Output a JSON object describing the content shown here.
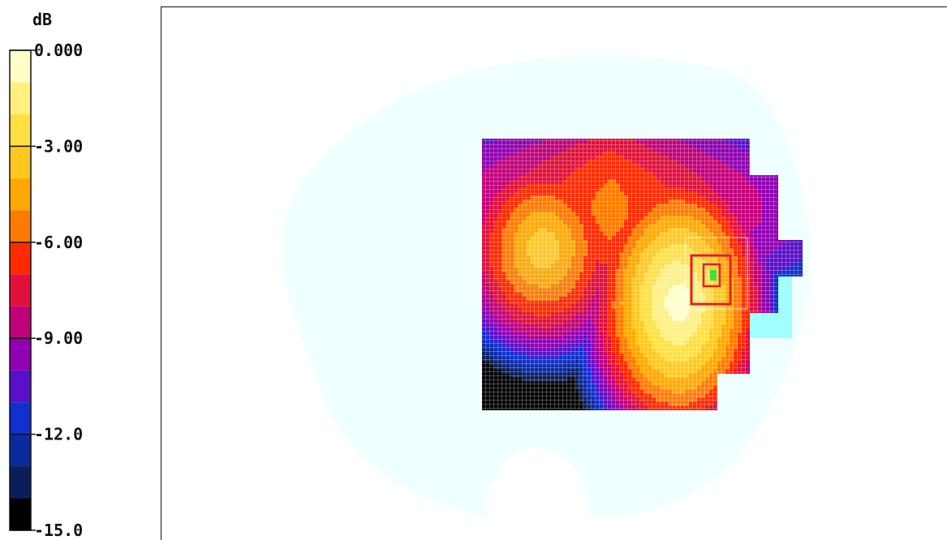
{
  "chart_data": {
    "type": "heatmap",
    "colorbar": {
      "unit": "dB",
      "min": -15.0,
      "max": 0.0,
      "ticks": [
        {
          "value": 0.0,
          "label": "0.000"
        },
        {
          "value": -3.0,
          "label": "-3.00"
        },
        {
          "value": -6.0,
          "label": "-6.00"
        },
        {
          "value": -9.0,
          "label": "-9.00"
        },
        {
          "value": -12.0,
          "label": "-12.0"
        },
        {
          "value": -15.0,
          "label": "-15.0"
        }
      ],
      "bands": [
        {
          "from": -1.0,
          "to": 0.0,
          "color": "#ffffc8"
        },
        {
          "from": -2.0,
          "to": -1.0,
          "color": "#fff080"
        },
        {
          "from": -3.0,
          "to": -2.0,
          "color": "#ffe040"
        },
        {
          "from": -4.0,
          "to": -3.0,
          "color": "#ffc820"
        },
        {
          "from": -5.0,
          "to": -4.0,
          "color": "#ffa800"
        },
        {
          "from": -6.0,
          "to": -5.0,
          "color": "#ff7a00"
        },
        {
          "from": -7.0,
          "to": -6.0,
          "color": "#ff2a00"
        },
        {
          "from": -8.0,
          "to": -7.0,
          "color": "#e0103a"
        },
        {
          "from": -9.0,
          "to": -8.0,
          "color": "#c0007a"
        },
        {
          "from": -10.0,
          "to": -9.0,
          "color": "#9000b0"
        },
        {
          "from": -11.0,
          "to": -10.0,
          "color": "#5a10c8"
        },
        {
          "from": -12.0,
          "to": -11.0,
          "color": "#1030d0"
        },
        {
          "from": -13.0,
          "to": -12.0,
          "color": "#0a2aa0"
        },
        {
          "from": -14.0,
          "to": -13.0,
          "color": "#0a1e5a"
        },
        {
          "from": -15.0,
          "to": -14.0,
          "color": "#000000"
        }
      ]
    },
    "field": {
      "background_color": "#f0ffff",
      "peaks": [
        {
          "name": "left",
          "x": 0.22,
          "y": 0.4,
          "value": -3.2
        },
        {
          "name": "right",
          "x": 0.72,
          "y": 0.6,
          "value": -0.3
        }
      ]
    }
  }
}
